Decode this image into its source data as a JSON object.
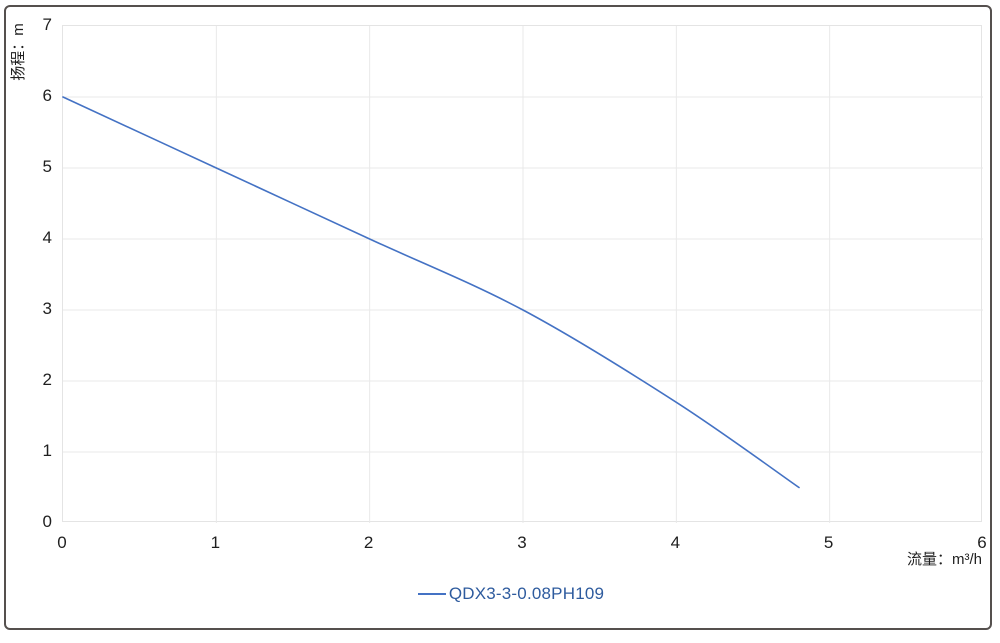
{
  "window": {
    "background": "#ffffff",
    "outer_border_color": "#55504e"
  },
  "axes": {
    "tick_text_color": "#1f1f1f",
    "gridline_color": "#e9e9e9",
    "plot_border_color": "#e4e4e4"
  },
  "legend": {
    "label": "QDX3-3-0.08PH109",
    "text_color": "#2e5b9e",
    "marker_color": "#4472c4"
  },
  "chart_data": {
    "type": "line",
    "title": "",
    "xlabel": "流量：m³/h",
    "ylabel": "扬程：m",
    "xlim": [
      0,
      6
    ],
    "ylim": [
      0,
      7
    ],
    "xticks": [
      0,
      1,
      2,
      3,
      4,
      5,
      6
    ],
    "yticks": [
      0,
      1,
      2,
      3,
      4,
      5,
      6,
      7
    ],
    "grid": true,
    "legend_position": "bottom-center",
    "series": [
      {
        "name": "QDX3-3-0.08PH109",
        "color": "#4472c4",
        "smooth": true,
        "x": [
          0,
          1,
          2,
          3,
          4,
          4.8
        ],
        "y": [
          6,
          5,
          4,
          3,
          1.7,
          0.5
        ]
      }
    ]
  }
}
